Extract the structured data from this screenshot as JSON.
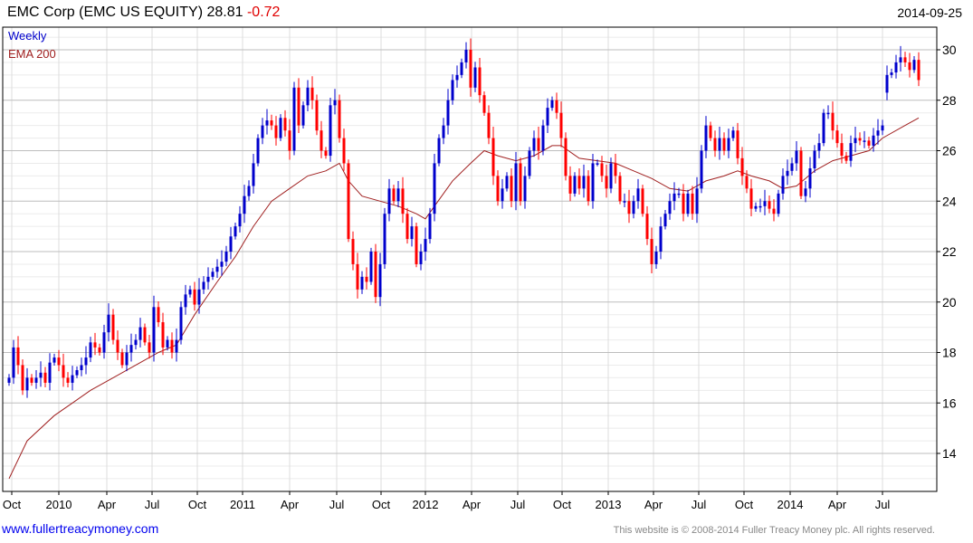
{
  "header": {
    "title": "EMC Corp (EMC US EQUITY)",
    "price": "28.81",
    "change": "-0.72",
    "date": "2014-09-25"
  },
  "legend": {
    "series": "Weekly",
    "overlay": "EMA 200"
  },
  "footer": {
    "link": "www.fullertreacymoney.com",
    "copyright": "This website is © 2008-2014 Fuller Treacy Money plc. All rights reserved."
  },
  "colors": {
    "up": "#0000cc",
    "down": "#ff0000",
    "ema": "#a02020",
    "legend_series": "#0000cc",
    "legend_overlay": "#a02020"
  },
  "chart_data": {
    "type": "candlestick",
    "title": "EMC Corp (EMC US EQUITY)",
    "frequency": "Weekly",
    "ylim": [
      12.5,
      30.9
    ],
    "yticks": [
      14,
      16,
      18,
      20,
      22,
      24,
      26,
      28,
      30
    ],
    "xticks": [
      {
        "label": "Oct",
        "index": 0.6
      },
      {
        "label": "2010",
        "index": 11
      },
      {
        "label": "Apr",
        "index": 21.6
      },
      {
        "label": "Jul",
        "index": 31.6
      },
      {
        "label": "Oct",
        "index": 41.6
      },
      {
        "label": "2011",
        "index": 51.6
      },
      {
        "label": "Apr",
        "index": 62
      },
      {
        "label": "Jul",
        "index": 72.4
      },
      {
        "label": "Oct",
        "index": 82.2
      },
      {
        "label": "2012",
        "index": 92
      },
      {
        "label": "Apr",
        "index": 102.2
      },
      {
        "label": "Jul",
        "index": 112.4
      },
      {
        "label": "Oct",
        "index": 122.2
      },
      {
        "label": "2013",
        "index": 132.4
      },
      {
        "label": "Apr",
        "index": 142.4
      },
      {
        "label": "Jul",
        "index": 152.4
      },
      {
        "label": "Oct",
        "index": 162.4
      },
      {
        "label": "2014",
        "index": 172.6
      },
      {
        "label": "Apr",
        "index": 183
      },
      {
        "label": "Jul",
        "index": 193
      }
    ],
    "first_open": 16.8,
    "open_overrides": {
      "194": 28.3
    },
    "closes": [
      17.0,
      18.2,
      17.5,
      16.5,
      17.0,
      16.8,
      17.0,
      17.2,
      16.8,
      17.6,
      17.8,
      17.5,
      17.0,
      16.8,
      17.1,
      17.3,
      17.5,
      17.8,
      18.4,
      18.2,
      18.0,
      18.8,
      19.5,
      18.5,
      18.0,
      17.5,
      18.0,
      18.3,
      18.5,
      19.0,
      18.4,
      18.0,
      19.8,
      19.2,
      18.2,
      18.5,
      18.0,
      18.5,
      19.8,
      20.3,
      20.5,
      19.9,
      20.5,
      20.8,
      21.0,
      21.2,
      21.4,
      21.6,
      22.0,
      22.6,
      23.0,
      23.5,
      24.2,
      24.6,
      25.5,
      26.5,
      27.0,
      27.2,
      27.0,
      26.5,
      27.3,
      26.8,
      26.0,
      28.5,
      27.0,
      27.8,
      28.5,
      28.0,
      26.8,
      26.0,
      25.8,
      27.8,
      28.0,
      26.5,
      25.5,
      22.5,
      21.5,
      20.5,
      21.0,
      20.8,
      22.0,
      20.2,
      21.5,
      23.5,
      24.5,
      24.0,
      24.5,
      23.5,
      22.5,
      23.0,
      21.5,
      22.0,
      22.5,
      23.5,
      25.5,
      26.5,
      27.0,
      28.0,
      28.8,
      29.0,
      29.5,
      30.0,
      28.5,
      29.3,
      28.2,
      27.5,
      26.5,
      25.0,
      24.0,
      24.5,
      25.0,
      24.0,
      25.5,
      24.0,
      25.0,
      26.0,
      26.5,
      26.0,
      27.0,
      27.7,
      28.0,
      27.5,
      26.5,
      25.0,
      24.3,
      25.0,
      24.5,
      25.0,
      24.0,
      25.5,
      25.5,
      25.0,
      24.5,
      25.5,
      25.0,
      24.0,
      24.0,
      23.5,
      24.0,
      24.5,
      23.5,
      22.5,
      21.5,
      22.0,
      23.0,
      23.5,
      24.0,
      24.3,
      24.3,
      23.5,
      24.3,
      23.5,
      24.5,
      26.0,
      27.0,
      26.5,
      26.0,
      26.5,
      26.0,
      26.5,
      26.8,
      25.7,
      25.0,
      24.5,
      23.7,
      23.8,
      23.8,
      24.0,
      23.7,
      23.5,
      24.3,
      25.0,
      25.2,
      25.5,
      26.0,
      24.2,
      24.5,
      25.3,
      26.0,
      26.3,
      27.5,
      27.5,
      26.8,
      26.3,
      25.8,
      25.6,
      26.3,
      26.5,
      26.4,
      26.4,
      26.2,
      26.6,
      26.8,
      27.0,
      29.0,
      29.1,
      29.5,
      29.7,
      29.5,
      29.2,
      29.6,
      28.8
    ],
    "ema200": [
      [
        0,
        13.0
      ],
      [
        4,
        14.5
      ],
      [
        10,
        15.5
      ],
      [
        14,
        16.0
      ],
      [
        18,
        16.5
      ],
      [
        23,
        17.0
      ],
      [
        28,
        17.5
      ],
      [
        33,
        18.0
      ],
      [
        37,
        18.3
      ],
      [
        41,
        19.5
      ],
      [
        46,
        20.8
      ],
      [
        50,
        21.8
      ],
      [
        54,
        23.0
      ],
      [
        58,
        24.0
      ],
      [
        62,
        24.5
      ],
      [
        66,
        25.0
      ],
      [
        70,
        25.2
      ],
      [
        73,
        25.5
      ],
      [
        75,
        24.8
      ],
      [
        78,
        24.2
      ],
      [
        82,
        24.0
      ],
      [
        86,
        23.8
      ],
      [
        90,
        23.5
      ],
      [
        92,
        23.3
      ],
      [
        94,
        23.8
      ],
      [
        98,
        24.8
      ],
      [
        102,
        25.5
      ],
      [
        105,
        26.0
      ],
      [
        108,
        25.8
      ],
      [
        112,
        25.6
      ],
      [
        116,
        25.8
      ],
      [
        120,
        26.2
      ],
      [
        122,
        26.2
      ],
      [
        126,
        25.7
      ],
      [
        130,
        25.6
      ],
      [
        134,
        25.5
      ],
      [
        138,
        25.2
      ],
      [
        142,
        24.9
      ],
      [
        146,
        24.5
      ],
      [
        150,
        24.4
      ],
      [
        154,
        24.8
      ],
      [
        158,
        25.0
      ],
      [
        161,
        25.2
      ],
      [
        164,
        25.0
      ],
      [
        168,
        24.8
      ],
      [
        171,
        24.5
      ],
      [
        174,
        24.6
      ],
      [
        178,
        25.2
      ],
      [
        182,
        25.6
      ],
      [
        186,
        25.8
      ],
      [
        190,
        26.0
      ],
      [
        193,
        26.5
      ],
      [
        198,
        27.0
      ],
      [
        201,
        27.3
      ]
    ]
  }
}
